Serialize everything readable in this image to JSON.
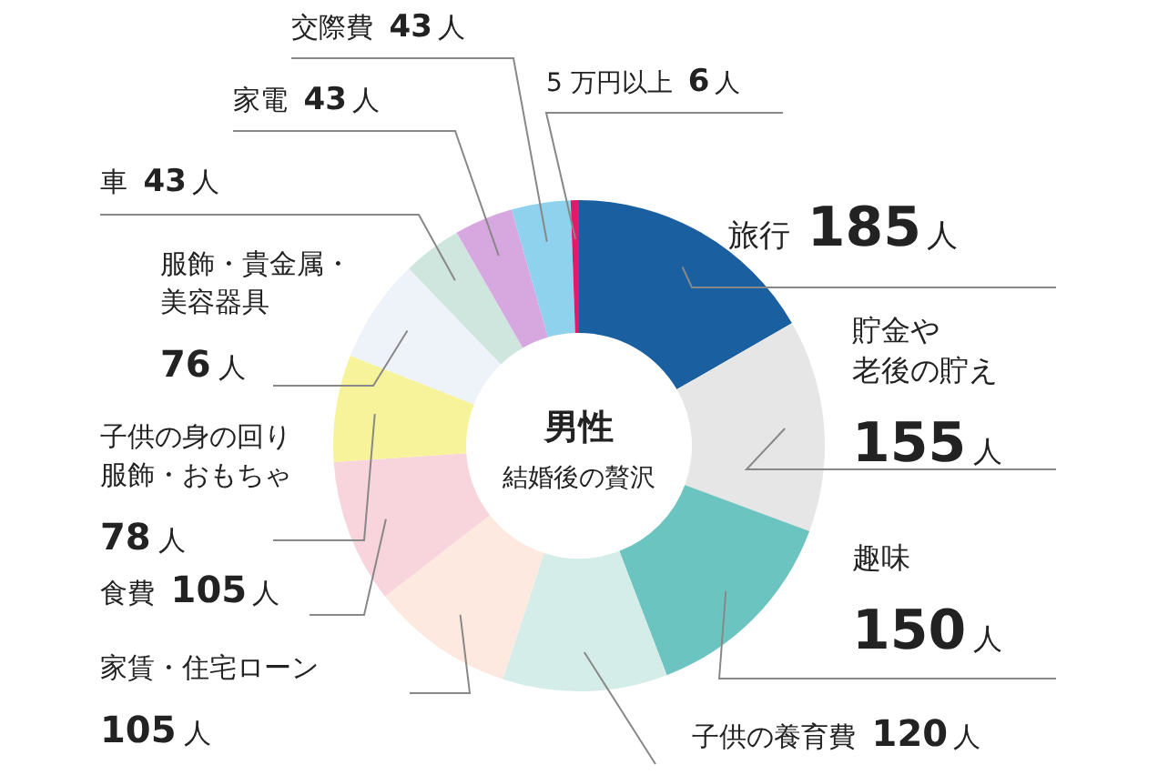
{
  "chart_data": {
    "type": "donut",
    "title": "男性",
    "subtitle": "結婚後の贅沢",
    "categories": [
      "旅行",
      "貯金や老後の貯え",
      "趣味",
      "子供の養育費",
      "家賃・住宅ローン",
      "食費",
      "子供の身の回り服飾・おもちゃ",
      "服飾・貴金属・美容器具",
      "車",
      "家電",
      "交際費",
      "5 万円以上"
    ],
    "values": [
      185,
      155,
      150,
      120,
      105,
      105,
      78,
      76,
      43,
      43,
      43,
      6
    ],
    "value_labels": [
      "185人",
      "155人",
      "150人",
      "120人",
      "105人",
      "105人",
      "78 人",
      "76 人",
      "43 人",
      "43 人",
      "43 人",
      "6 人"
    ],
    "colors": [
      "#1a5fa0",
      "#e6e6e6",
      "#6cc4c0",
      "#d5ede9",
      "#fde9df",
      "#f8d4dc",
      "#f7f39a",
      "#eef3fa",
      "#cfe6df",
      "#d7a8e0",
      "#8fd2ee",
      "#e5176b"
    ],
    "legend": false
  }
}
